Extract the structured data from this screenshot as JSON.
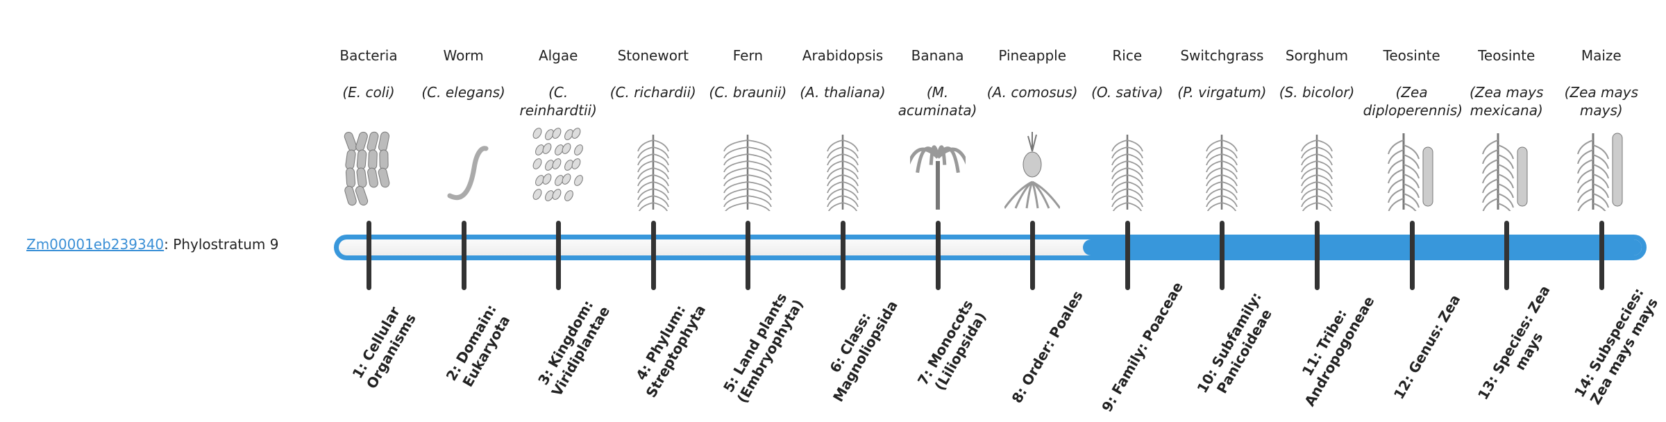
{
  "gene": {
    "id": "Zm00001eb239340",
    "suffix": ": Phylostratum 9"
  },
  "phylostratum": 9,
  "colors": {
    "accent": "#3897db",
    "tick": "#333333",
    "link": "#3a8fd6"
  },
  "organisms": [
    {
      "name": "Bacteria",
      "species": "(E. coli)",
      "icon": "bacteria-icon"
    },
    {
      "name": "Worm",
      "species": "(C. elegans)",
      "icon": "worm-icon"
    },
    {
      "name": "Algae",
      "species": "(C. reinhardtii)",
      "icon": "algae-icon"
    },
    {
      "name": "Stonewort",
      "species": "(C. richardii)",
      "icon": "stonewort-icon"
    },
    {
      "name": "Fern",
      "species": "(C. braunii)",
      "icon": "fern-icon"
    },
    {
      "name": "Arabidopsis",
      "species": "(A. thaliana)",
      "icon": "arabidopsis-icon"
    },
    {
      "name": "Banana",
      "species": "(M. acuminata)",
      "icon": "banana-icon"
    },
    {
      "name": "Pineapple",
      "species": "(A. comosus)",
      "icon": "pineapple-icon"
    },
    {
      "name": "Rice",
      "species": "(O. sativa)",
      "icon": "rice-icon"
    },
    {
      "name": "Switchgrass",
      "species": "(P. virgatum)",
      "icon": "switchgrass-icon"
    },
    {
      "name": "Sorghum",
      "species": "(S. bicolor)",
      "icon": "sorghum-icon"
    },
    {
      "name": "Teosinte",
      "species": "(Zea diploperennis)",
      "icon": "teosinte-icon"
    },
    {
      "name": "Teosinte",
      "species": "(Zea mays mexicana)",
      "icon": "teosinte-icon"
    },
    {
      "name": "Maize",
      "species": "(Zea mays mays)",
      "icon": "maize-icon"
    }
  ],
  "strata": [
    "1: Cellular Organisms",
    "2: Domain: Eukaryota",
    "3: Kingdom: Viridiplantae",
    "4: Phylum: Streptophyta",
    "5: Land plants (Embryophyta)",
    "6: Class: Magnoliopsida",
    "7: Monocots (Liliopsida)",
    "8: Order: Poales",
    "9: Family: Poaceae",
    "10: Subfamily: Panicoideae",
    "11: Tribe: Andropogoneae",
    "12: Genus: Zea",
    "13: Species: Zea mays",
    "14: Subspecies: Zea mays mays"
  ]
}
